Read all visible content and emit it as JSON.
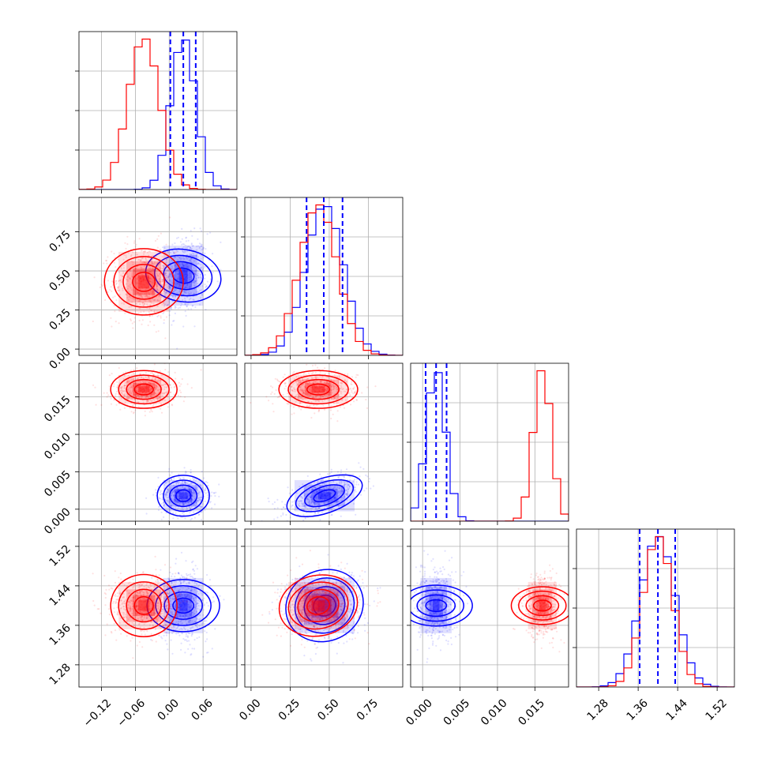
{
  "chart_data": {
    "type": "corner",
    "title": "",
    "parameters": [
      {
        "range": [
          -0.16,
          0.12
        ],
        "ticks": [
          -0.12,
          -0.06,
          0.0,
          0.06
        ],
        "tick_labels": [
          "−0.12",
          "−0.06",
          "0.00",
          "0.06"
        ]
      },
      {
        "range": [
          -0.04,
          0.97
        ],
        "ticks": [
          0.0,
          0.25,
          0.5,
          0.75
        ],
        "tick_labels": [
          "0.00",
          "0.25",
          "0.50",
          "0.75"
        ]
      },
      {
        "range": [
          -0.0016,
          0.0195
        ],
        "ticks": [
          0.0,
          0.005,
          0.01,
          0.015
        ],
        "tick_labels": [
          "0.000",
          "0.005",
          "0.010",
          "0.015"
        ]
      },
      {
        "range": [
          1.235,
          1.555
        ],
        "ticks": [
          1.28,
          1.36,
          1.44,
          1.52
        ],
        "tick_labels": [
          "1.28",
          "1.36",
          "1.44",
          "1.52"
        ]
      }
    ],
    "series": [
      {
        "color": "#0000ff",
        "mean": [
          0.025,
          0.47,
          0.0018,
          1.4
        ],
        "std": [
          0.022,
          0.12,
          0.0013,
          0.035
        ],
        "correlations": {
          "0-1": 0.15,
          "0-2": 0.0,
          "0-3": 0.0,
          "1-2": 0.55,
          "1-3": 0.1,
          "2-3": 0.0
        },
        "quantiles": [
          [
            0.002,
            0.025,
            0.047
          ],
          [
            0.355,
            0.465,
            0.585
          ],
          [
            0.0004,
            0.0018,
            0.0032
          ],
          [
            1.363,
            1.4,
            1.435
          ]
        ]
      },
      {
        "color": "#ff0000",
        "mean": [
          -0.045,
          0.43,
          0.016,
          1.4
        ],
        "std": [
          0.028,
          0.12,
          0.0012,
          0.03
        ],
        "correlations": {
          "0-1": 0.0,
          "0-2": 0.0,
          "0-3": 0.0,
          "1-2": 0.0,
          "1-3": 0.1,
          "2-3": 0.0
        },
        "quantiles": []
      }
    ],
    "grid": true,
    "legend": "none"
  }
}
